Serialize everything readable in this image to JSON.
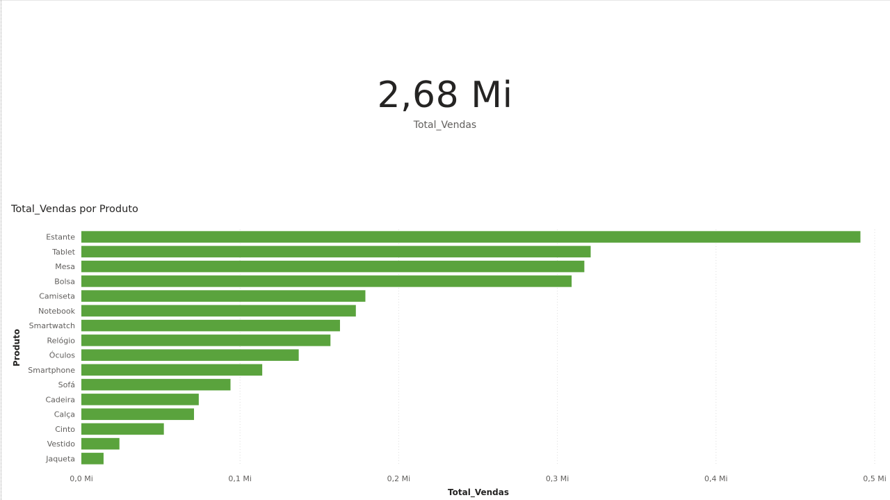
{
  "card": {
    "value": "2,68 Mi",
    "label": "Total_Vendas"
  },
  "chart_data": {
    "type": "bar",
    "orientation": "horizontal",
    "title": "Total_Vendas por Produto",
    "xlabel": "Total_Vendas",
    "ylabel": "Produto",
    "xlim": [
      0,
      0.5
    ],
    "x_unit": "Mi",
    "x_ticks": [
      {
        "value": 0.0,
        "label": "0,0 Mi"
      },
      {
        "value": 0.1,
        "label": "0,1 Mi"
      },
      {
        "value": 0.2,
        "label": "0,2 Mi"
      },
      {
        "value": 0.3,
        "label": "0,3 Mi"
      },
      {
        "value": 0.4,
        "label": "0,4 Mi"
      },
      {
        "value": 0.5,
        "label": "0,5 Mi"
      }
    ],
    "categories": [
      "Estante",
      "Tablet",
      "Mesa",
      "Bolsa",
      "Camiseta",
      "Notebook",
      "Smartwatch",
      "Relógio",
      "Óculos",
      "Smartphone",
      "Sofá",
      "Cadeira",
      "Calça",
      "Cinto",
      "Vestido",
      "Jaqueta"
    ],
    "values": [
      0.491,
      0.321,
      0.317,
      0.309,
      0.179,
      0.173,
      0.163,
      0.157,
      0.137,
      0.114,
      0.094,
      0.074,
      0.071,
      0.052,
      0.024,
      0.014
    ],
    "bar_color": "#5aa33d",
    "grid": true,
    "legend": "none"
  }
}
